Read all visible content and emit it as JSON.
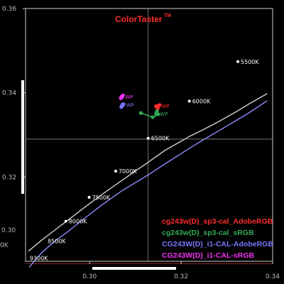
{
  "chart_data": {
    "type": "scatter",
    "title": "ColorTaster",
    "title_mark": "TM",
    "xlim": [
      0.286,
      0.34
    ],
    "ylim": [
      0.3,
      0.36
    ],
    "x_ticks": [
      0.3,
      0.32,
      0.34
    ],
    "x_tick_labels": [
      "0.30",
      "0.32",
      "0.34"
    ],
    "y_ticks": [
      0.32,
      0.34,
      0.36
    ],
    "y_tick_labels": [
      "0.32",
      "0.34",
      "0.36"
    ],
    "partial_labels": [
      "0.30",
      "0K"
    ],
    "crosshair": {
      "x": 0.3128,
      "y": 0.329
    },
    "locus": {
      "name": "Planckian locus",
      "color": "#cfcfcf",
      "points": [
        [
          0.2866,
          0.3024
        ],
        [
          0.2895,
          0.305
        ],
        [
          0.2925,
          0.3075
        ],
        [
          0.2952,
          0.3097
        ],
        [
          0.2989,
          0.3128
        ],
        [
          0.3025,
          0.3157
        ],
        [
          0.3063,
          0.3186
        ],
        [
          0.3105,
          0.3218
        ],
        [
          0.3128,
          0.3235
        ],
        [
          0.3164,
          0.3263
        ],
        [
          0.3221,
          0.3298
        ],
        [
          0.3251,
          0.3314
        ],
        [
          0.3281,
          0.3331
        ],
        [
          0.3317,
          0.3353
        ],
        [
          0.3349,
          0.3374
        ],
        [
          0.3388,
          0.3398
        ]
      ]
    },
    "daylight": {
      "name": "Daylight locus",
      "color": "#8c8cff",
      "points": [
        [
          0.2868,
          0.2986
        ],
        [
          0.2894,
          0.3019
        ],
        [
          0.2923,
          0.3047
        ],
        [
          0.2952,
          0.307
        ],
        [
          0.2989,
          0.3102
        ],
        [
          0.3026,
          0.3133
        ],
        [
          0.307,
          0.3167
        ],
        [
          0.3128,
          0.3205
        ],
        [
          0.3163,
          0.323
        ],
        [
          0.3221,
          0.327
        ],
        [
          0.3251,
          0.329
        ],
        [
          0.3281,
          0.3309
        ],
        [
          0.3317,
          0.3332
        ],
        [
          0.3349,
          0.3353
        ],
        [
          0.3388,
          0.3381
        ]
      ]
    },
    "cct_labels": [
      {
        "label": "5500K",
        "x": 0.3324,
        "y": 0.3474,
        "dot": true
      },
      {
        "label": "6000K",
        "x": 0.3218,
        "y": 0.338,
        "dot": true
      },
      {
        "label": "6500K",
        "x": 0.3128,
        "y": 0.3292,
        "dot": true
      },
      {
        "label": "7000K",
        "x": 0.3057,
        "y": 0.3214,
        "dot": true
      },
      {
        "label": "7500K",
        "x": 0.2999,
        "y": 0.3152,
        "dot": true
      },
      {
        "label": "8000K",
        "x": 0.2948,
        "y": 0.3095,
        "dot": true
      },
      {
        "label": "8500K",
        "x": 0.2902,
        "y": 0.3048,
        "dot": false
      },
      {
        "label": "9300K",
        "x": 0.2863,
        "y": 0.3008,
        "dot": false
      }
    ],
    "series": [
      {
        "name": "cg243w(D)_sp3-cal_AdobeRGB",
        "color": "#ff2b2b",
        "points": [
          [
            0.3149,
            0.3363
          ],
          [
            0.3153,
            0.3371
          ],
          [
            0.3145,
            0.3368
          ]
        ],
        "wp": [
          0.3149,
          0.3368
        ],
        "wp_label": "WP"
      },
      {
        "name": "cg243w(D)_sp3-cal_sRGB",
        "color": "#33aa55",
        "points": [
          [
            0.3112,
            0.3352
          ],
          [
            0.3138,
            0.3342
          ],
          [
            0.315,
            0.3349
          ],
          [
            0.3147,
            0.3356
          ]
        ],
        "wp": [
          0.3146,
          0.335
        ],
        "wp_label": "WP"
      },
      {
        "name": "CG243W(D)_i1-CAL-AdobeRGB",
        "color": "#7777ff",
        "points": [
          [
            0.3069,
            0.3366
          ],
          [
            0.3074,
            0.3373
          ]
        ],
        "wp": [
          0.3072,
          0.3371
        ],
        "wp_label": "WP"
      },
      {
        "name": "CG243W(D)_i1-CAL-sRGB",
        "color": "#ee33ee",
        "points": [
          [
            0.3068,
            0.3387
          ],
          [
            0.3073,
            0.3394
          ]
        ],
        "wp": [
          0.307,
          0.339
        ],
        "wp_label": "WP"
      }
    ],
    "legend_position": "bottom-right",
    "grid": false
  }
}
